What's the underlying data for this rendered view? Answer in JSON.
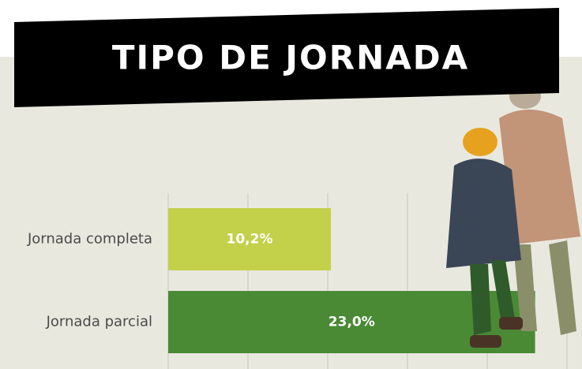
{
  "chart_data": {
    "type": "hbar",
    "title": "TIPO DE JORNADA",
    "categories": [
      "Jornada completa",
      "Jornada parcial"
    ],
    "values": [
      10.2,
      23.0
    ],
    "value_labels": [
      "10,2%",
      "23,0%"
    ],
    "colors": [
      "#c3d04a",
      "#4a8a35"
    ],
    "xlim": [
      0,
      25
    ],
    "xticks": [
      0,
      5,
      10,
      15,
      20,
      25
    ],
    "grid": true
  }
}
